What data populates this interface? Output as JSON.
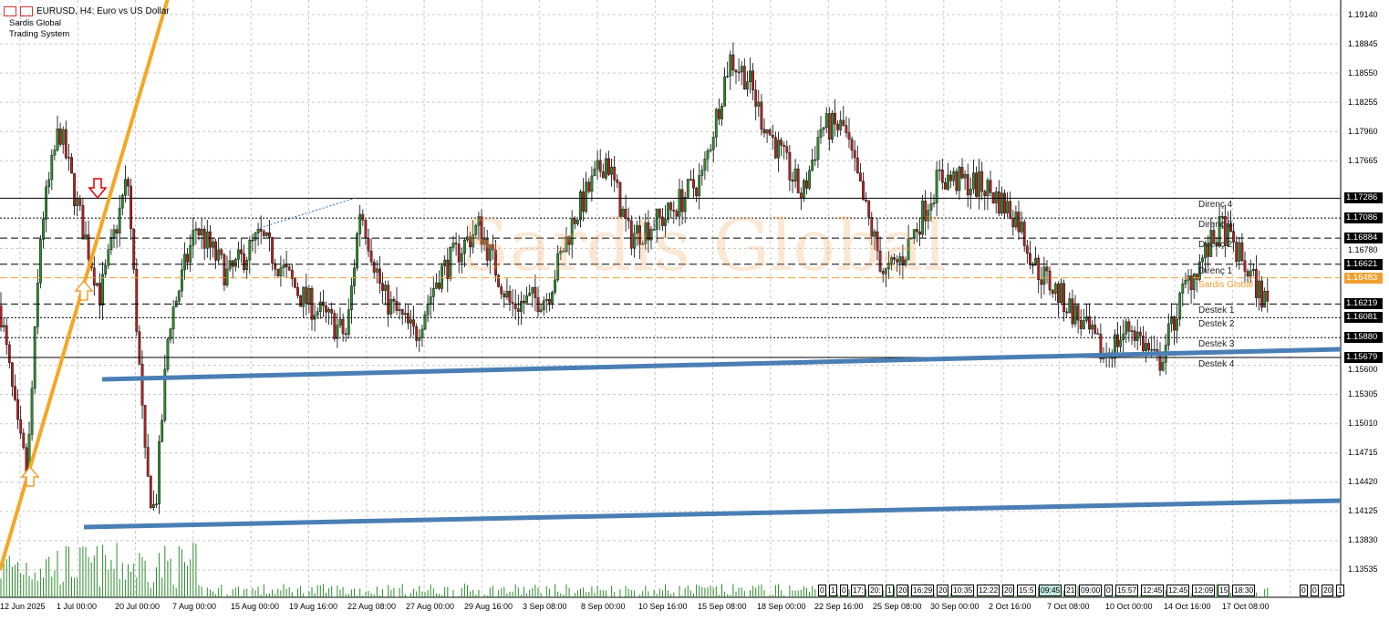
{
  "header": {
    "title": "EURUSD, H4:  Euro vs US Dollar",
    "indicator_name": "Sardis Global",
    "indicator_sub": "Trading System"
  },
  "watermark": "Sardis Global",
  "price_axis": [
    "1.19140",
    "1.18845",
    "1.18550",
    "1.18255",
    "1.17960",
    "1.17665",
    "1.16780",
    "1.15600",
    "1.15305",
    "1.15010",
    "1.14715",
    "1.14420",
    "1.14125",
    "1.13830",
    "1.13535"
  ],
  "levels": [
    {
      "label": "Direnç 4",
      "price": "1.17286",
      "style": "solid",
      "color": "#000000"
    },
    {
      "label": "Direnç 3",
      "price": "1.17086",
      "style": "dotted",
      "color": "#000000"
    },
    {
      "label": "Direnç 2",
      "price": "1.16884",
      "style": "dashed",
      "color": "#000000"
    },
    {
      "label": "Direnç 1",
      "price": "1.16621",
      "style": "dashed",
      "color": "#000000"
    },
    {
      "label": "Sardis Global",
      "price": "1.16483",
      "style": "dashed",
      "color": "#f0a030"
    },
    {
      "label": "Destek 1",
      "price": "1.16219",
      "style": "dashed",
      "color": "#000000"
    },
    {
      "label": "Destek 2",
      "price": "1.16081",
      "style": "dotted",
      "color": "#000000"
    },
    {
      "label": "Destek 3",
      "price": "1.15880",
      "style": "dotted",
      "color": "#000000"
    },
    {
      "label": "Destek 4",
      "price": "1.15679",
      "style": "solid",
      "color": "#000000"
    }
  ],
  "time_axis": [
    "12 Jun 2025",
    "1 Jul 00:00",
    "20 Jul 00:00",
    "7 Aug 00:00",
    "15 Aug 00:00",
    "19 Aug 16:00",
    "22 Aug 08:00",
    "27 Aug 00:00",
    "29 Aug 16:00",
    "3 Sep 08:00",
    "8 Sep 00:00",
    "10 Sep 16:00",
    "15 Sep 08:00",
    "18 Sep 00:00",
    "22 Sep 16:00",
    "25 Sep 08:00",
    "30 Sep 00:00",
    "2 Oct 16:00",
    "7 Oct 08:00",
    "10 Oct 00:00",
    "14 Oct 16:00",
    "17 Oct 08:00"
  ],
  "time_tags": [
    "0",
    "1",
    "0",
    "17:",
    "20:",
    "1",
    "20",
    "16:29",
    "20",
    "10:35",
    "12:22",
    "20",
    "15:5",
    "09:45",
    "21",
    "09:00",
    "0",
    "15:57",
    "12:45",
    "12:45",
    "12:09",
    "15",
    "18:30",
    "0",
    "0",
    "20",
    "1"
  ],
  "colors": {
    "bull": "#2e8b2e",
    "bear": "#b22222",
    "trend_orange": "#f5a623",
    "support_blue": "#4a7fb5",
    "current_price": "#f0a030"
  },
  "price_path": [
    [
      0,
      1.162
    ],
    [
      20,
      1.149
    ],
    [
      30,
      1.145
    ],
    [
      45,
      1.17
    ],
    [
      65,
      1.18
    ],
    [
      85,
      1.172
    ],
    [
      110,
      1.163
    ],
    [
      140,
      1.175
    ],
    [
      160,
      1.145
    ],
    [
      170,
      1.141
    ],
    [
      185,
      1.16
    ],
    [
      215,
      1.17
    ],
    [
      250,
      1.165
    ],
    [
      285,
      1.169
    ],
    [
      330,
      1.163
    ],
    [
      380,
      1.159
    ],
    [
      395,
      1.172
    ],
    [
      420,
      1.163
    ],
    [
      455,
      1.159
    ],
    [
      480,
      1.165
    ],
    [
      525,
      1.17
    ],
    [
      560,
      1.162
    ],
    [
      600,
      1.163
    ],
    [
      630,
      1.171
    ],
    [
      665,
      1.177
    ],
    [
      690,
      1.169
    ],
    [
      730,
      1.171
    ],
    [
      770,
      1.175
    ],
    [
      800,
      1.187
    ],
    [
      820,
      1.185
    ],
    [
      835,
      1.181
    ],
    [
      880,
      1.173
    ],
    [
      900,
      1.18
    ],
    [
      925,
      1.18
    ],
    [
      945,
      1.173
    ],
    [
      970,
      1.165
    ],
    [
      990,
      1.167
    ],
    [
      1030,
      1.175
    ],
    [
      1080,
      1.174
    ],
    [
      1115,
      1.171
    ],
    [
      1135,
      1.166
    ],
    [
      1180,
      1.161
    ],
    [
      1210,
      1.157
    ],
    [
      1240,
      1.16
    ],
    [
      1270,
      1.156
    ],
    [
      1300,
      1.164
    ],
    [
      1340,
      1.17
    ],
    [
      1390,
      1.162
    ]
  ]
}
